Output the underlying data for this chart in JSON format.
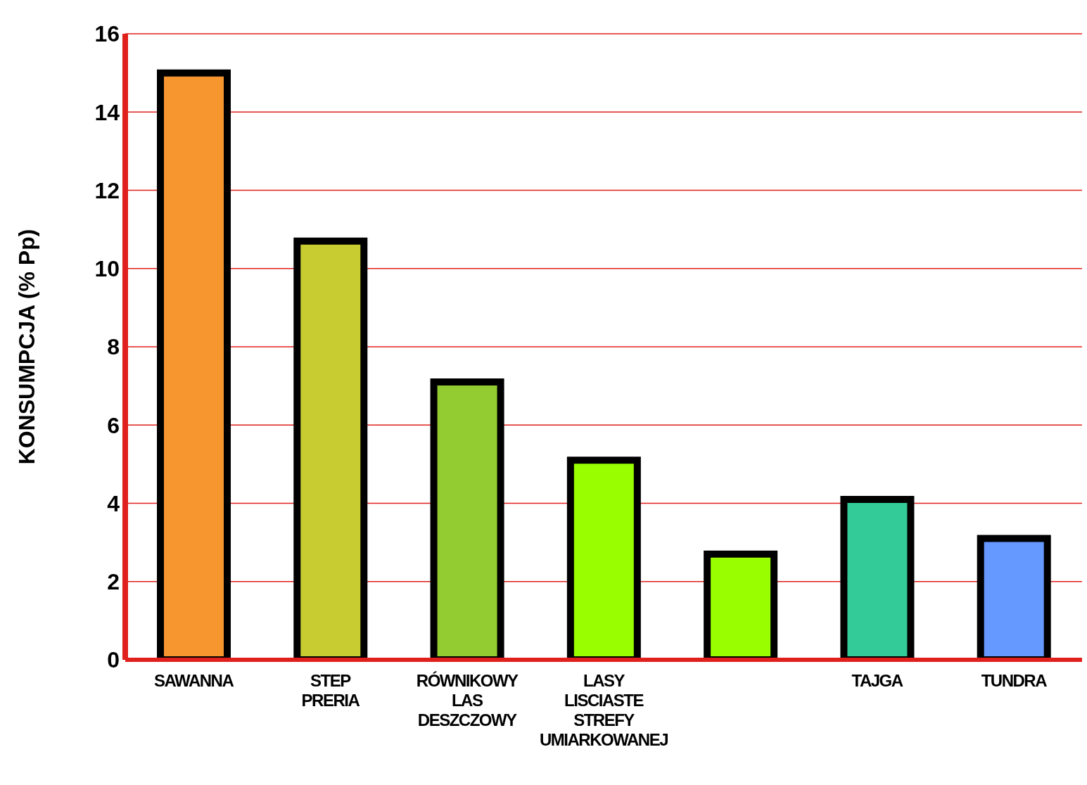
{
  "chart_data": {
    "type": "bar",
    "ylabel": "KONSUMPCJA (% Pp)",
    "categories": [
      "SAWANNA",
      "STEP\nPRERIA",
      "RÓWNIKOWY\nLAS\nDESZCZOWY",
      "LASY\nLISCIASTE\nSTREFY\nUMIARKOWANEJ",
      null,
      "TAJGA",
      "TUNDRA"
    ],
    "values": [
      15,
      10.7,
      7.1,
      5.1,
      2.7,
      4.1,
      3.1
    ],
    "colors": [
      "#f7962f",
      "#c8cc30",
      "#92cc30",
      "#99ff00",
      "#99ff00",
      "#33cc99",
      "#6699ff"
    ],
    "ylim": [
      0,
      16
    ],
    "yticks": [
      0,
      2,
      4,
      6,
      8,
      10,
      12,
      14,
      16
    ],
    "grid": "y"
  }
}
